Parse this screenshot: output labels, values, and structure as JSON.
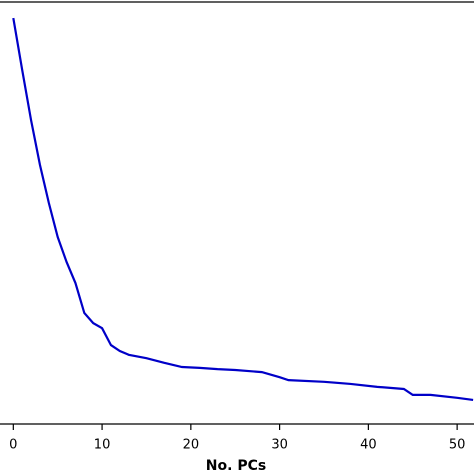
{
  "chart_data": {
    "type": "line",
    "x_label": "No. PCs",
    "series": [
      {
        "color": "#0000c8",
        "x": [
          0,
          1,
          2,
          3,
          4,
          5,
          6,
          7,
          8,
          9,
          10,
          11,
          12,
          13,
          15,
          17,
          19,
          21,
          23,
          25,
          28,
          30,
          31,
          35,
          38,
          41,
          44,
          45,
          47,
          50,
          51.8
        ],
        "values": [
          96.2,
          83.9,
          72.0,
          61.4,
          52.4,
          44.3,
          38.4,
          33.4,
          26.3,
          23.9,
          22.7,
          18.7,
          17.3,
          16.4,
          15.6,
          14.5,
          13.5,
          13.3,
          13.0,
          12.8,
          12.3,
          11.1,
          10.4,
          10.0,
          9.5,
          8.8,
          8.3,
          6.9,
          6.9,
          6.2,
          5.7
        ]
      }
    ],
    "xlim": [
      -1.5,
      51.9
    ],
    "ylim": [
      0,
      100
    ],
    "xticks": [
      0,
      10,
      20,
      30,
      40,
      50
    ]
  }
}
